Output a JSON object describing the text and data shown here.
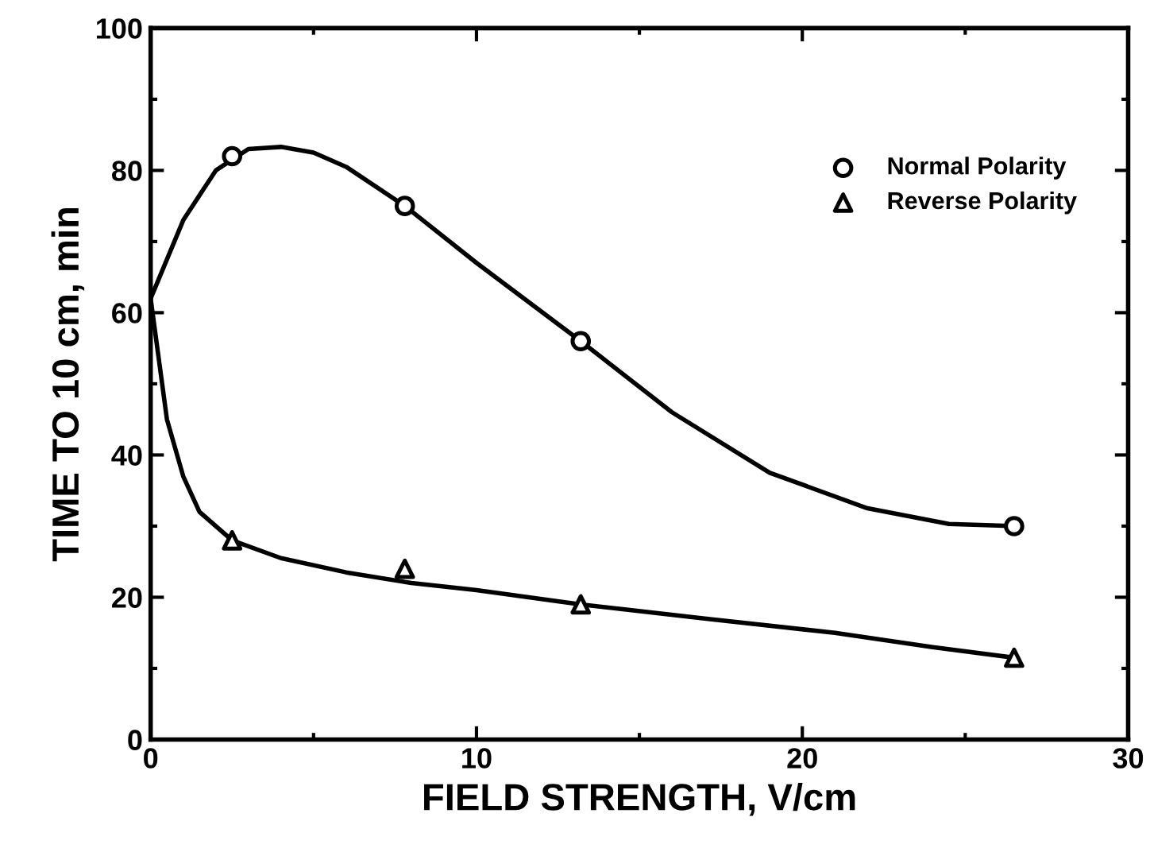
{
  "chart_data": {
    "type": "scatter",
    "xlabel": "FIELD STRENGTH, V/cm",
    "ylabel": "TIME TO 10 cm, min",
    "xlim": [
      0,
      30
    ],
    "xticks": [
      0,
      10,
      20,
      30
    ],
    "ylim": [
      0,
      100
    ],
    "yticks": [
      0,
      20,
      40,
      60,
      80,
      100
    ],
    "grid": false,
    "legend": "top right",
    "series": [
      {
        "name": "Normal Polarity",
        "color": "#000000",
        "marker": "circle",
        "x": [
          2.5,
          7.8,
          13.2,
          26.5
        ],
        "values": [
          82,
          75,
          56,
          30
        ]
      },
      {
        "name": "Reverse Polarity",
        "color": "#000000",
        "marker": "triangle",
        "x": [
          2.5,
          7.8,
          13.2,
          26.5
        ],
        "values": [
          28,
          24,
          19,
          11.5
        ]
      },
      {
        "type": "line",
        "color": "#000000",
        "marker": "none",
        "line_style": "solid",
        "x": [
          0,
          1,
          2,
          3,
          4,
          5,
          6,
          7.8,
          10,
          13.2,
          16,
          19,
          22,
          24.5,
          26.5
        ],
        "values": [
          62,
          73,
          80,
          83,
          83.3,
          82.5,
          80.5,
          75,
          67,
          56,
          46,
          37.5,
          32.5,
          30.3,
          30
        ]
      },
      {
        "type": "line",
        "color": "#000000",
        "marker": "none",
        "line_style": "solid",
        "x": [
          0,
          0.5,
          1,
          1.5,
          2.5,
          4,
          6,
          8,
          10,
          13.2,
          17,
          21,
          24,
          26.5
        ],
        "values": [
          62,
          45,
          37,
          32,
          28,
          25.5,
          23.5,
          22,
          21,
          19,
          17,
          15,
          13,
          11.5
        ]
      }
    ]
  }
}
